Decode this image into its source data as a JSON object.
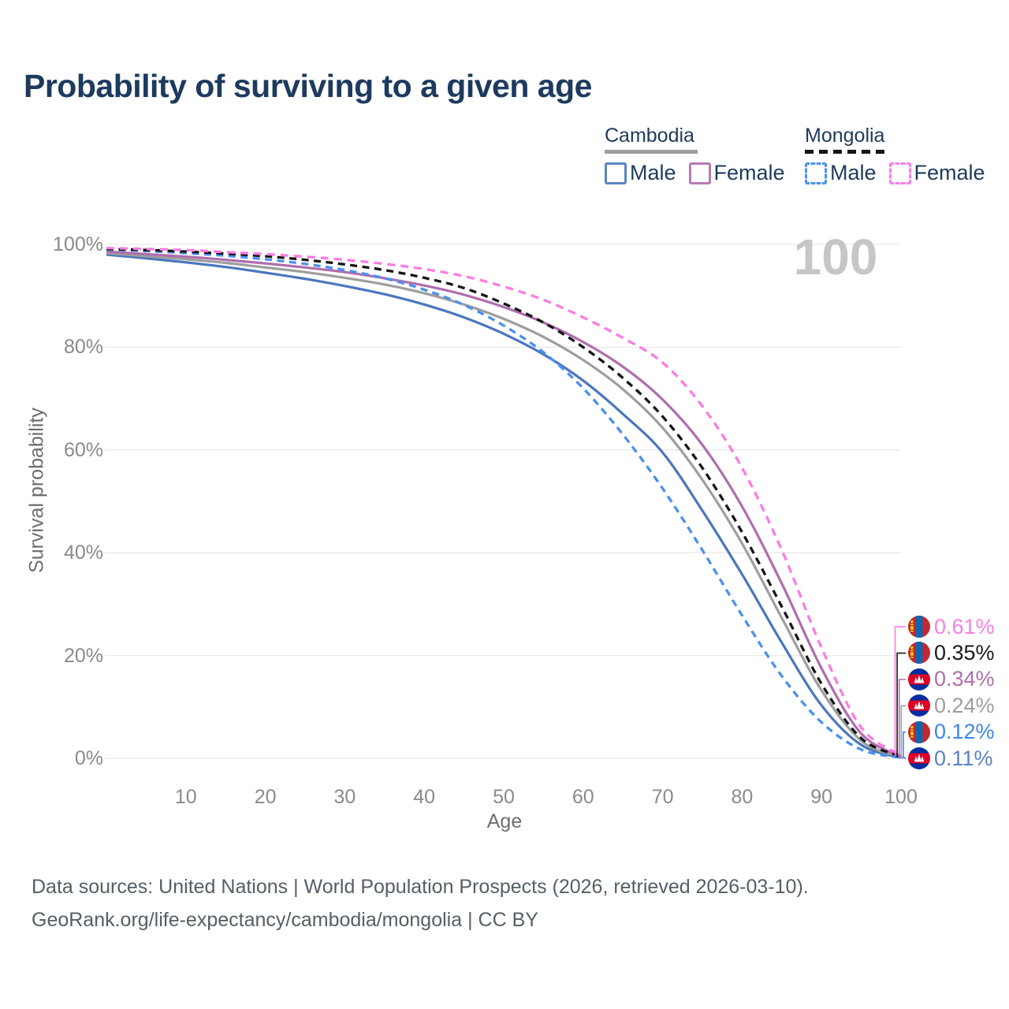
{
  "title": "Probability of surviving to a given age",
  "hover_value": "100",
  "legend": {
    "groups": [
      {
        "name": "Cambodia",
        "line_style": "solid",
        "line_color": "#9e9e9e",
        "items": [
          {
            "label": "Male",
            "color": "#5b84c4",
            "dashed": false
          },
          {
            "label": "Female",
            "color": "#b77ab4",
            "dashed": false
          }
        ]
      },
      {
        "name": "Mongolia",
        "line_style": "dashed",
        "line_color": "#141414",
        "items": [
          {
            "label": "Male",
            "color": "#4b93f0",
            "dashed": true
          },
          {
            "label": "Female",
            "color": "#ff7de4",
            "dashed": true
          }
        ]
      }
    ]
  },
  "chart_data": {
    "type": "line",
    "title": "Probability of surviving to a given age",
    "xlabel": "Age",
    "ylabel": "Survival probability",
    "xlim": [
      0,
      100
    ],
    "ylim": [
      0,
      100
    ],
    "x_ticks": [
      10,
      20,
      30,
      40,
      50,
      60,
      70,
      80,
      90,
      100
    ],
    "y_ticks": [
      0,
      20,
      40,
      60,
      80,
      100
    ],
    "y_tick_suffix": "%",
    "grid": "horizontal",
    "x": [
      0,
      5,
      10,
      15,
      20,
      25,
      30,
      35,
      40,
      45,
      50,
      55,
      60,
      65,
      70,
      75,
      80,
      85,
      90,
      95,
      100
    ],
    "series": [
      {
        "name": "Cambodia Male",
        "color": "#4a77be",
        "dash": null,
        "values": [
          98.0,
          97.3,
          96.5,
          95.6,
          94.5,
          93.3,
          91.9,
          90.3,
          88.3,
          85.8,
          82.6,
          78.6,
          73.5,
          67.0,
          59.5,
          48.2,
          35.8,
          22.5,
          10.3,
          2.6,
          0.11
        ]
      },
      {
        "name": "Cambodia",
        "color": "#9e9e9e",
        "dash": null,
        "values": [
          98.3,
          97.7,
          97.1,
          96.4,
          95.5,
          94.6,
          93.5,
          92.2,
          90.5,
          88.3,
          85.5,
          82.0,
          77.5,
          71.8,
          64.3,
          54.2,
          41.8,
          27.3,
          13.2,
          3.4,
          0.24
        ]
      },
      {
        "name": "Cambodia Female",
        "color": "#b06dad",
        "dash": null,
        "values": [
          98.6,
          98.1,
          97.6,
          97.0,
          96.3,
          95.5,
          94.6,
          93.4,
          92.0,
          90.2,
          87.8,
          84.8,
          81.0,
          76.2,
          69.8,
          61.0,
          49.0,
          34.0,
          17.5,
          4.8,
          0.34
        ]
      },
      {
        "name": "Mongolia Male",
        "color": "#4b90ee",
        "dash": "9 6.5",
        "values": [
          99.0,
          98.7,
          98.3,
          97.8,
          97.1,
          96.2,
          95.0,
          93.4,
          91.2,
          88.2,
          84.2,
          79.0,
          72.0,
          63.0,
          52.5,
          40.5,
          27.8,
          16.0,
          7.0,
          1.7,
          0.12
        ]
      },
      {
        "name": "Mongolia",
        "color": "#141414",
        "dash": "9 6.5",
        "values": [
          99.1,
          98.9,
          98.6,
          98.2,
          97.7,
          97.0,
          96.1,
          95.0,
          93.5,
          91.5,
          88.5,
          84.8,
          80.0,
          74.0,
          66.5,
          56.5,
          44.0,
          29.5,
          14.5,
          3.9,
          0.35
        ]
      },
      {
        "name": "Mongolia Female",
        "color": "#fc7ce2",
        "dash": "10 7",
        "values": [
          99.3,
          99.1,
          98.9,
          98.5,
          98.1,
          97.6,
          97.0,
          96.2,
          95.2,
          93.8,
          91.8,
          89.2,
          85.8,
          81.8,
          77.0,
          68.5,
          56.5,
          40.5,
          21.5,
          6.0,
          0.61
        ]
      }
    ]
  },
  "end_labels": [
    {
      "value": "0.61%",
      "series": "Mongolia Female",
      "flag": "mongolia",
      "color": "#fb7ce2"
    },
    {
      "value": "0.35%",
      "series": "Mongolia",
      "flag": "mongolia",
      "color": "#1a1a1a"
    },
    {
      "value": "0.34%",
      "series": "Cambodia Female",
      "flag": "cambodia",
      "color": "#b06dad"
    },
    {
      "value": "0.24%",
      "series": "Cambodia",
      "flag": "cambodia",
      "color": "#9e9e9e"
    },
    {
      "value": "0.12%",
      "series": "Mongolia Male",
      "flag": "mongolia",
      "color": "#3c86f0"
    },
    {
      "value": "0.11%",
      "series": "Cambodia Male",
      "flag": "cambodia",
      "color": "#5b80ca"
    }
  ],
  "footer": {
    "line1": "Data sources: United Nations | World Population Prospects (2026, retrieved 2026-03-10).",
    "line2": "GeoRank.org/life-expectancy/cambodia/mongolia | CC BY"
  }
}
